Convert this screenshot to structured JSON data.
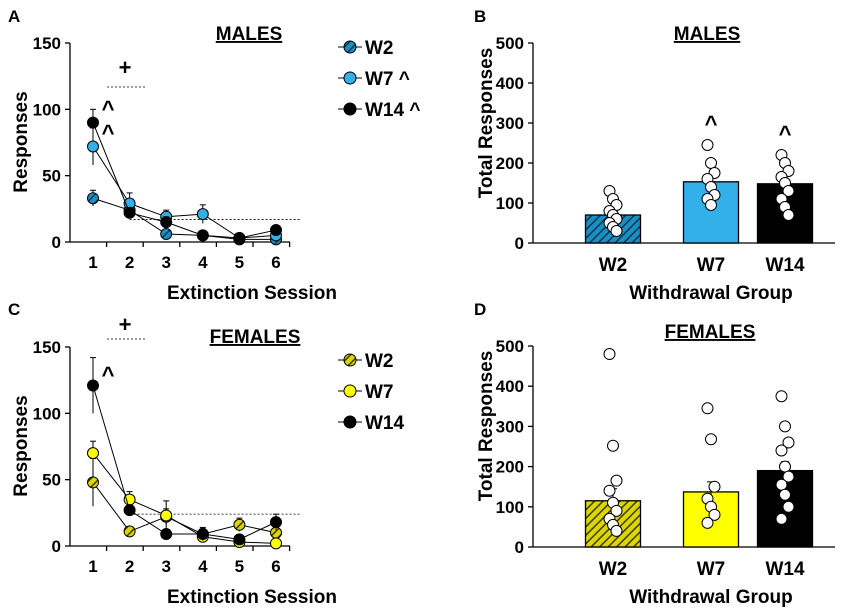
{
  "colors": {
    "w2_males": "#1a8fc4",
    "w7_males": "#33b0ea",
    "w14": "#000000",
    "w2_females": "#c8c200",
    "w7_females": "#ffff00"
  },
  "chart_data": [
    {
      "panel": "A",
      "type": "line",
      "title": "MALES",
      "xlabel": "Extinction Session",
      "ylabel": "Responses",
      "x": [
        1,
        2,
        3,
        4,
        5,
        6
      ],
      "ylim": [
        0,
        150
      ],
      "yticks": [
        "0",
        "50",
        "100",
        "150"
      ],
      "xticks": [
        "1",
        "2",
        "3",
        "4",
        "5",
        "6"
      ],
      "series": [
        {
          "name": "W2",
          "values": [
            33,
            24,
            6,
            5,
            2,
            2
          ],
          "err": [
            6,
            5,
            2,
            2,
            1,
            1
          ],
          "style": "hatched"
        },
        {
          "name": "W7 ^",
          "values": [
            72,
            29,
            19,
            21,
            3,
            5
          ],
          "err": [
            14,
            8,
            5,
            7,
            1,
            2
          ],
          "style": "solid"
        },
        {
          "name": "W14 ^",
          "values": [
            90,
            22,
            15,
            5,
            3,
            9
          ],
          "err": [
            10,
            4,
            4,
            2,
            1,
            3
          ],
          "style": "solid"
        }
      ],
      "significance": {
        "plus": "+",
        "carets": [
          "^",
          "^"
        ]
      }
    },
    {
      "panel": "B",
      "type": "bar",
      "title": "MALES",
      "xlabel": "Withdrawal Group",
      "ylabel": "Total Responses",
      "categories": [
        "W2",
        "W7",
        "W14"
      ],
      "values": [
        70,
        153,
        148
      ],
      "err": [
        14,
        20,
        18
      ],
      "ylim": [
        0,
        500
      ],
      "yticks": [
        "0",
        "100",
        "200",
        "300",
        "400",
        "500"
      ],
      "points": [
        [
          130,
          110,
          95,
          80,
          70,
          60,
          50,
          40,
          30
        ],
        [
          245,
          200,
          175,
          160,
          140,
          120,
          110,
          95
        ],
        [
          220,
          200,
          180,
          165,
          150,
          130,
          110,
          90,
          70
        ]
      ],
      "annotations": [
        "",
        "^",
        "^"
      ]
    },
    {
      "panel": "C",
      "type": "line",
      "title": "FEMALES",
      "xlabel": "Extinction Session",
      "ylabel": "Responses",
      "x": [
        1,
        2,
        3,
        4,
        5,
        6
      ],
      "ylim": [
        0,
        150
      ],
      "yticks": [
        "0",
        "50",
        "100",
        "150"
      ],
      "xticks": [
        "1",
        "2",
        "3",
        "4",
        "5",
        "6"
      ],
      "series": [
        {
          "name": "W2",
          "values": [
            48,
            11,
            22,
            9,
            16,
            10
          ],
          "err": [
            18,
            3,
            6,
            4,
            5,
            4
          ],
          "style": "hatched"
        },
        {
          "name": "W7",
          "values": [
            70,
            35,
            23,
            7,
            3,
            2
          ],
          "err": [
            9,
            6,
            11,
            3,
            1,
            1
          ],
          "style": "solid"
        },
        {
          "name": "W14",
          "values": [
            121,
            27,
            9,
            9,
            5,
            18
          ],
          "err": [
            21,
            4,
            3,
            5,
            2,
            6
          ],
          "style": "solid"
        }
      ],
      "significance": {
        "plus": "+",
        "carets": [
          "^"
        ]
      }
    },
    {
      "panel": "D",
      "type": "bar",
      "title": "FEMALES",
      "xlabel": "Withdrawal Group",
      "ylabel": "Total Responses",
      "categories": [
        "W2",
        "W7",
        "W14"
      ],
      "values": [
        115,
        137,
        190
      ],
      "err": [
        30,
        25,
        22
      ],
      "ylim": [
        0,
        500
      ],
      "yticks": [
        "0",
        "100",
        "200",
        "300",
        "400",
        "500"
      ],
      "points": [
        [
          480,
          252,
          165,
          140,
          110,
          90,
          70,
          55,
          40
        ],
        [
          345,
          268,
          150,
          120,
          100,
          80,
          60
        ],
        [
          375,
          300,
          260,
          240,
          200,
          175,
          155,
          130,
          100,
          70
        ]
      ],
      "annotations": [
        "",
        "",
        ""
      ]
    }
  ]
}
